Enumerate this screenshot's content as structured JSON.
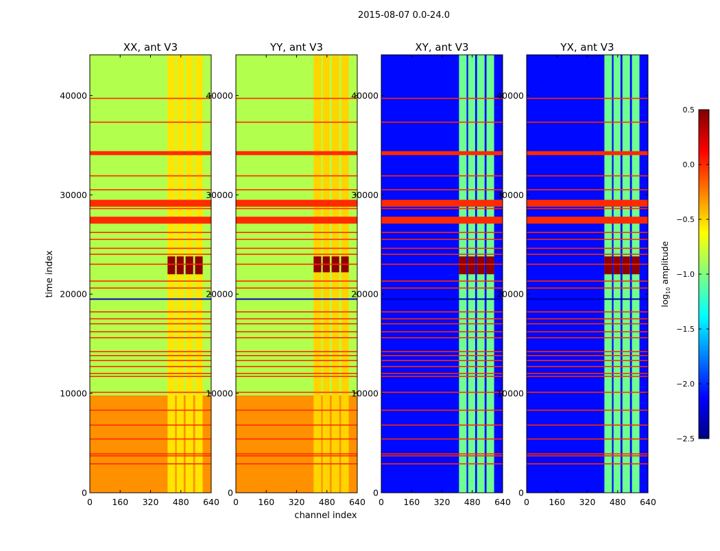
{
  "chart_data": {
    "type": "heatmap",
    "suptitle": "2015-08-07 0.0-24.0",
    "xlabel": "channel index",
    "ylabel": "time index",
    "xlim": [
      0,
      640
    ],
    "ylim": [
      0,
      44100
    ],
    "xticks": [
      0,
      160,
      320,
      480,
      640
    ],
    "yticks": [
      0,
      10000,
      20000,
      30000,
      40000
    ],
    "colormap": "jet",
    "colorbar": {
      "label_prefix": "log",
      "label_sub": "10",
      "label_suffix": " amplitude",
      "range": [
        -2.5,
        0.5
      ],
      "ticks": [
        0.5,
        0.0,
        -0.5,
        -1.0,
        -1.5,
        -2.0,
        -2.5
      ],
      "tick_labels": [
        "0.5",
        "0.0",
        "−0.5",
        "−1.0",
        "−1.5",
        "−2.0",
        "−2.5"
      ]
    },
    "flagged_rows": [
      39700,
      37300,
      31900,
      30500,
      29400,
      28600,
      26200,
      25500,
      24600,
      24000,
      23000,
      21300,
      20600,
      18200,
      17500,
      17000,
      16200,
      15600,
      14200,
      13800,
      13300,
      12700,
      12000,
      11700,
      10100,
      8300,
      6800,
      5400,
      3900,
      3700,
      2900
    ],
    "flagged_bands": [
      [
        28800,
        29500
      ],
      [
        27100,
        27800
      ],
      [
        34000,
        34400
      ]
    ],
    "flagged_value": 0.0,
    "panels": [
      {
        "title": "XX, ant V3",
        "base": [
          {
            "t": [
              0,
              9800
            ],
            "v": -0.3
          },
          {
            "t": [
              9800,
              44100
            ],
            "v": -0.85
          }
        ],
        "column_value": -0.55,
        "column_hot": {
          "t": [
            22000,
            23800
          ],
          "v": 0.45
        },
        "low_row": {
          "t": 19500,
          "v": -2.3
        }
      },
      {
        "title": "YY, ant V3",
        "base": [
          {
            "t": [
              0,
              9800
            ],
            "v": -0.3
          },
          {
            "t": [
              9800,
              44100
            ],
            "v": -0.85
          }
        ],
        "column_value": -0.5,
        "column_hot": {
          "t": [
            22200,
            23800
          ],
          "v": 0.45
        },
        "low_row": {
          "t": 19500,
          "v": -2.3
        }
      },
      {
        "title": "XY, ant V3",
        "base": [
          {
            "t": [
              0,
              44100
            ],
            "v": -2.1
          }
        ],
        "column_value": -1.05,
        "column_hot": {
          "t": [
            22000,
            23800
          ],
          "v": 0.45
        },
        "low_row": {
          "t": 19500,
          "v": -2.4
        }
      },
      {
        "title": "YX, ant V3",
        "base": [
          {
            "t": [
              0,
              44100
            ],
            "v": -2.1
          }
        ],
        "column_value": -1.05,
        "column_hot": {
          "t": [
            22000,
            23800
          ],
          "v": 0.45
        },
        "low_row": {
          "t": 19500,
          "v": -2.4
        }
      }
    ],
    "rfi_columns": [
      [
        410,
        450
      ],
      [
        458,
        495
      ],
      [
        505,
        545
      ],
      [
        555,
        595
      ]
    ]
  }
}
